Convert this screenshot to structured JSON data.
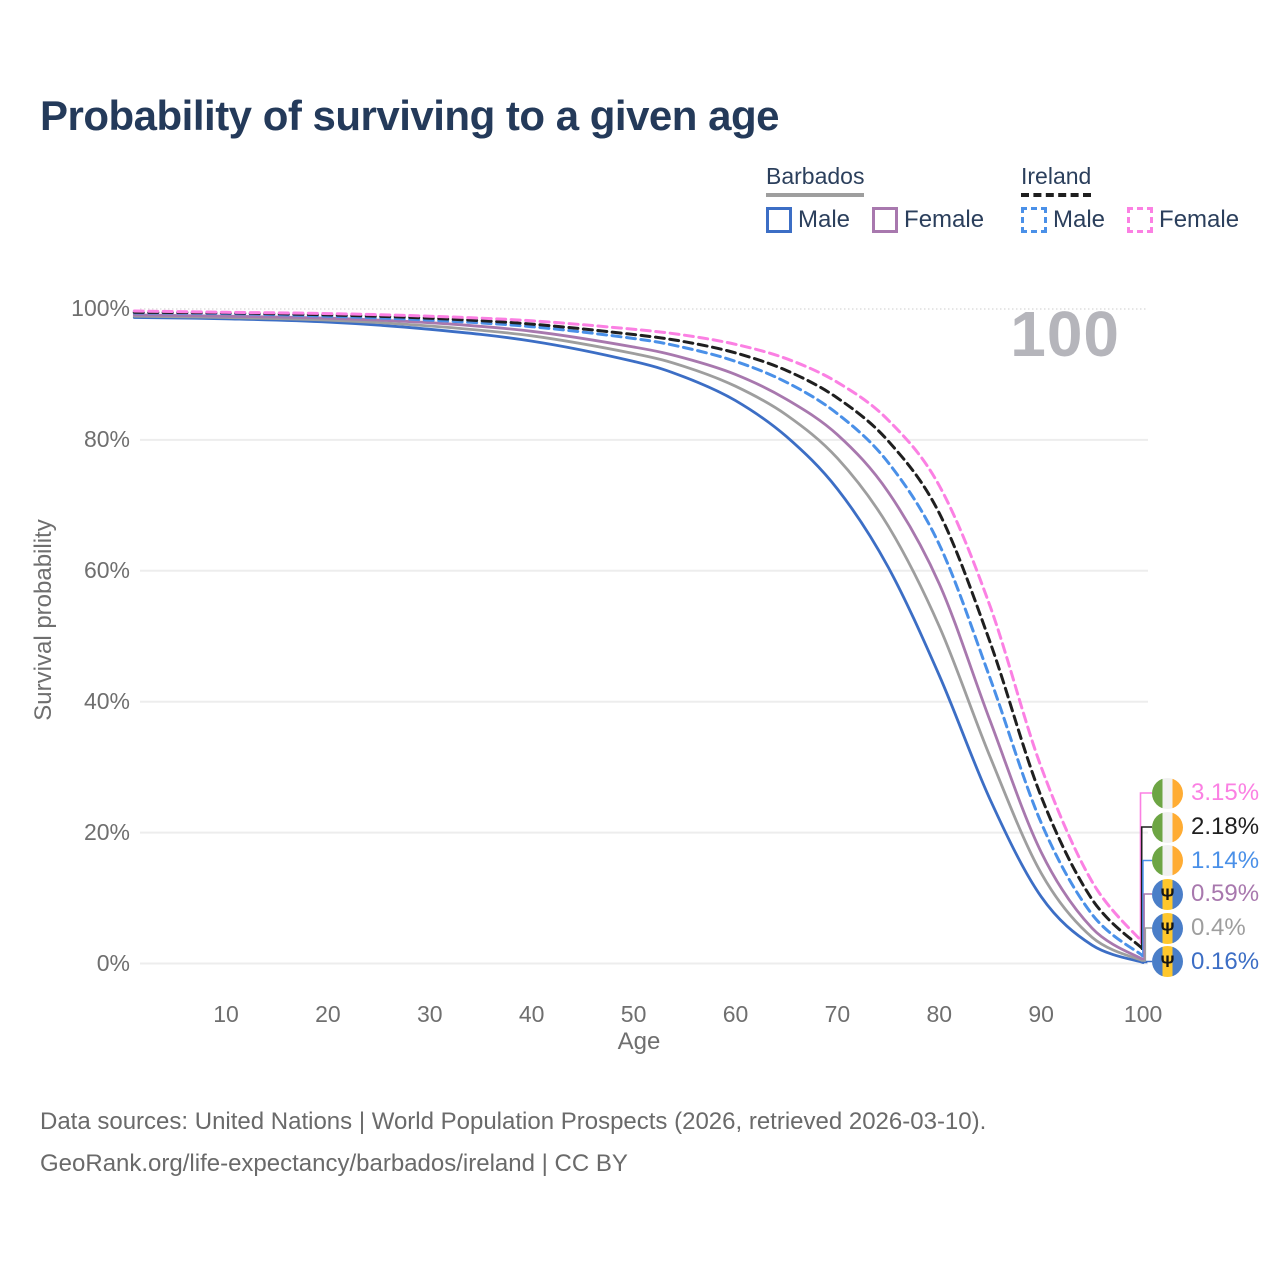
{
  "title": "Probability of surviving to a given age",
  "watermark": "100",
  "legend": {
    "groups": [
      {
        "name": "Barbados",
        "style": "solid",
        "underline_color": "#9E9E9E",
        "items": [
          {
            "label": "Male",
            "color": "#3C6EC5",
            "dashed": false
          },
          {
            "label": "Female",
            "color": "#A878AE",
            "dashed": false
          }
        ]
      },
      {
        "name": "Ireland",
        "style": "dashed",
        "underline_color": "#1F1F1F",
        "items": [
          {
            "label": "Male",
            "color": "#4A90E8",
            "dashed": true
          },
          {
            "label": "Female",
            "color": "#FB80E3",
            "dashed": true
          }
        ]
      }
    ]
  },
  "axes": {
    "y_title": "Survival probability",
    "x_title": "Age",
    "y_ticks": [
      {
        "label": "100%",
        "value": 100
      },
      {
        "label": "80%",
        "value": 80
      },
      {
        "label": "60%",
        "value": 60
      },
      {
        "label": "40%",
        "value": 40
      },
      {
        "label": "20%",
        "value": 20
      },
      {
        "label": "0%",
        "value": 0
      }
    ],
    "x_ticks": [
      {
        "label": "10",
        "value": 10
      },
      {
        "label": "20",
        "value": 20
      },
      {
        "label": "30",
        "value": 30
      },
      {
        "label": "40",
        "value": 40
      },
      {
        "label": "50",
        "value": 50
      },
      {
        "label": "60",
        "value": 60
      },
      {
        "label": "70",
        "value": 70
      },
      {
        "label": "80",
        "value": 80
      },
      {
        "label": "90",
        "value": 90
      },
      {
        "label": "100",
        "value": 100
      }
    ]
  },
  "flags": {
    "ireland": {
      "left": "#6DA544",
      "mid": "#F1F1F1",
      "right": "#FFAC33",
      "glyph": ""
    },
    "barbados": {
      "left": "#4A7EC8",
      "mid": "#FFC72C",
      "right": "#4A7EC8",
      "glyph": "Ψ"
    }
  },
  "footer": {
    "line1": "Data sources: United Nations | World Population Prospects (2026, retrieved 2026-03-10).",
    "line2": "GeoRank.org/life-expectancy/barbados/ireland | CC BY"
  },
  "chart_data": {
    "type": "line",
    "title": "Probability of surviving to a given age",
    "xlabel": "Age",
    "ylabel": "Survival probability",
    "x_range": [
      0,
      100
    ],
    "y_range_pct": [
      0,
      100
    ],
    "grid": "horizontal",
    "legend_position": "top-right",
    "ages": [
      1,
      10,
      20,
      30,
      40,
      50,
      55,
      60,
      65,
      70,
      75,
      80,
      85,
      90,
      95,
      100
    ],
    "series": [
      {
        "name": "Ireland Female",
        "country": "ireland",
        "color": "#FB80E3",
        "dashed": true,
        "end_label": "3.15%",
        "values": [
          99.7,
          99.5,
          99.3,
          98.9,
          98.2,
          96.9,
          96.0,
          94.6,
          92.4,
          88.8,
          83.0,
          73.0,
          54.5,
          30.0,
          12.5,
          3.15
        ]
      },
      {
        "name": "Ireland Both sexes",
        "country": "ireland",
        "color": "#1F1F1F",
        "dashed": true,
        "end_label": "2.18%",
        "values": [
          99.5,
          99.4,
          99.1,
          98.6,
          97.7,
          96.1,
          95.0,
          93.3,
          90.6,
          86.4,
          79.8,
          68.8,
          49.0,
          25.5,
          9.8,
          2.18
        ]
      },
      {
        "name": "Ireland Male",
        "country": "ireland",
        "color": "#4A90E8",
        "dashed": true,
        "end_label": "1.14%",
        "values": [
          99.4,
          99.3,
          98.9,
          98.3,
          97.3,
          95.5,
          94.1,
          92.0,
          88.8,
          84.0,
          76.5,
          64.0,
          43.5,
          21.5,
          7.5,
          1.14
        ]
      },
      {
        "name": "Barbados Female",
        "country": "barbados",
        "color": "#A878AE",
        "dashed": false,
        "end_label": "0.59%",
        "values": [
          99.1,
          98.9,
          98.6,
          97.9,
          96.6,
          94.2,
          92.5,
          90.0,
          86.2,
          80.8,
          72.0,
          58.0,
          37.0,
          17.0,
          5.4,
          0.59
        ]
      },
      {
        "name": "Barbados Both sexes",
        "country": "barbados",
        "color": "#9E9E9E",
        "dashed": false,
        "end_label": "0.4%",
        "values": [
          98.9,
          98.7,
          98.3,
          97.4,
          95.9,
          93.2,
          91.2,
          88.2,
          83.8,
          77.2,
          66.8,
          51.5,
          31.5,
          13.8,
          4.0,
          0.4
        ]
      },
      {
        "name": "Barbados Male",
        "country": "barbados",
        "color": "#3C6EC5",
        "dashed": false,
        "end_label": "0.16%",
        "values": [
          98.7,
          98.5,
          98.0,
          96.9,
          95.1,
          92.0,
          89.6,
          86.0,
          80.5,
          72.5,
          60.5,
          44.0,
          25.0,
          10.2,
          2.8,
          0.16
        ]
      }
    ]
  }
}
